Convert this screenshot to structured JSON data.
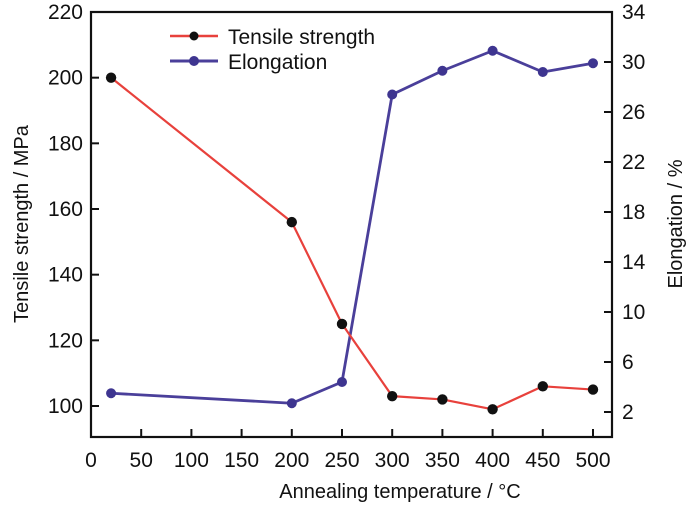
{
  "chart_data": {
    "type": "line",
    "title": "",
    "xlabel": "Annealing temperature / °C",
    "ylabel_left": "Tensile strength / MPa",
    "ylabel_right": "Elongation / %",
    "x": [
      20,
      200,
      250,
      300,
      350,
      400,
      450,
      500
    ],
    "xlim": [
      0,
      520
    ],
    "x_ticks": [
      0,
      50,
      100,
      150,
      200,
      250,
      300,
      350,
      400,
      450,
      500
    ],
    "x_tick_labels": [
      "0",
      "50",
      "100",
      "150",
      "200",
      "250",
      "300",
      "350",
      "400",
      "450",
      "500"
    ],
    "ylim_left": [
      90,
      220
    ],
    "y_ticks_left": [
      100,
      120,
      140,
      160,
      180,
      200,
      220
    ],
    "y_tick_labels_left": [
      "100",
      "120",
      "140",
      "160",
      "180",
      "200",
      "220"
    ],
    "ylim_right": [
      0.5,
      34
    ],
    "y_ticks_right": [
      2,
      6,
      10,
      14,
      18,
      22,
      26,
      30,
      34
    ],
    "y_tick_labels_right": [
      "2",
      "6",
      "10",
      "14",
      "18",
      "22",
      "26",
      "30",
      "34"
    ],
    "grid": false,
    "legend_position": "top-center",
    "series": [
      {
        "name": "Tensile strength",
        "axis": "left",
        "color": "#e8413c",
        "marker_color": "#111111",
        "values": [
          200,
          156,
          125,
          103,
          102,
          99,
          106,
          105
        ]
      },
      {
        "name": "Elongation",
        "axis": "right",
        "color": "#4a3f9a",
        "marker_color": "#3e3590",
        "values": [
          3.5,
          2.7,
          4.4,
          27.4,
          29.3,
          30.9,
          29.2,
          29.9
        ]
      }
    ]
  }
}
